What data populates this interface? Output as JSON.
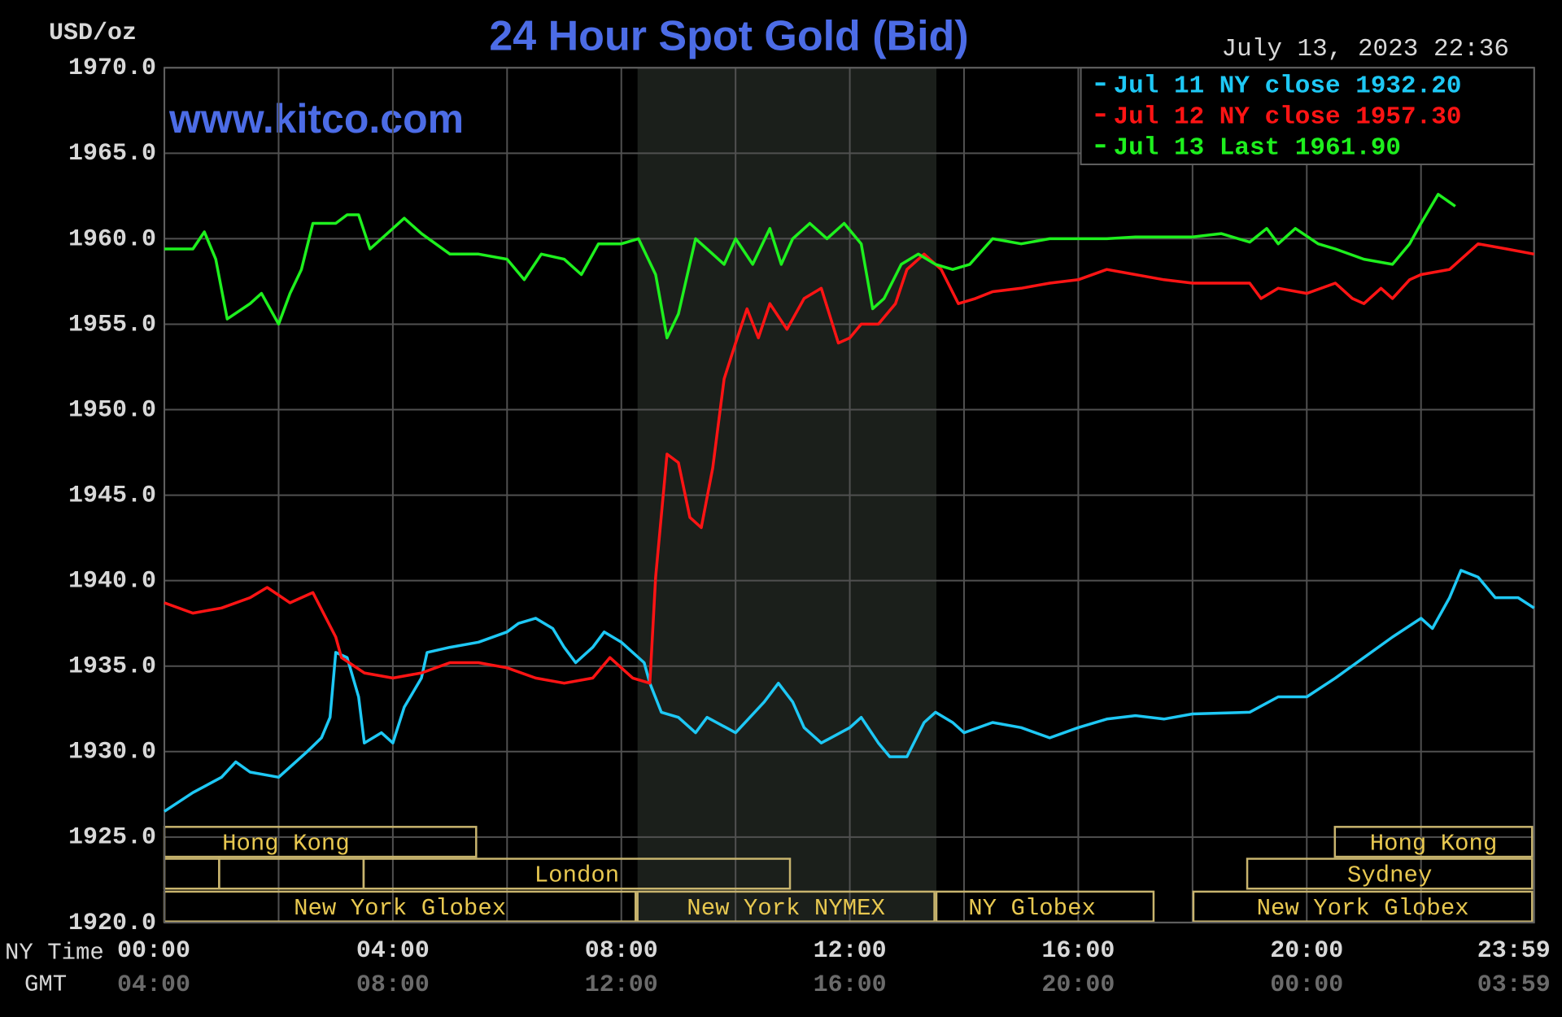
{
  "chart_data": {
    "type": "line",
    "title": "24 Hour Spot Gold (Bid)",
    "y_label": "USD/oz",
    "timestamp": "July 13, 2023 22:36",
    "watermark": "www.kitco.com",
    "x_label": "NY Time",
    "x2_label": "GMT",
    "xlim": [
      0,
      23.98
    ],
    "xticks": [
      {
        "value": 0,
        "label": "00:00"
      },
      {
        "value": 4,
        "label": "04:00"
      },
      {
        "value": 8,
        "label": "08:00"
      },
      {
        "value": 12,
        "label": "12:00"
      },
      {
        "value": 16,
        "label": "16:00"
      },
      {
        "value": 20,
        "label": "20:00"
      },
      {
        "value": 23.98,
        "label": "23:59"
      }
    ],
    "x2ticks": [
      {
        "value": 0,
        "label": "04:00"
      },
      {
        "value": 4,
        "label": "08:00"
      },
      {
        "value": 8,
        "label": "12:00"
      },
      {
        "value": 12,
        "label": "16:00"
      },
      {
        "value": 16,
        "label": "20:00"
      },
      {
        "value": 20,
        "label": "00:00"
      },
      {
        "value": 23.98,
        "label": "03:59"
      }
    ],
    "xminor": [
      2,
      6,
      10,
      14,
      18,
      22
    ],
    "ylim": [
      1920,
      1970
    ],
    "yticks": [
      {
        "value": 1920,
        "label": "1920.0"
      },
      {
        "value": 1925,
        "label": "1925.0"
      },
      {
        "value": 1930,
        "label": "1930.0"
      },
      {
        "value": 1935,
        "label": "1935.0"
      },
      {
        "value": 1940,
        "label": "1940.0"
      },
      {
        "value": 1945,
        "label": "1945.0"
      },
      {
        "value": 1950,
        "label": "1950.0"
      },
      {
        "value": 1955,
        "label": "1955.0"
      },
      {
        "value": 1960,
        "label": "1960.0"
      },
      {
        "value": 1965,
        "label": "1965.0"
      },
      {
        "value": 1970,
        "label": "1970.0"
      }
    ],
    "grid": true,
    "legend": "top-right",
    "sessions": [
      "Hong Kong",
      "Hong Kong",
      "London",
      "Sydney",
      "New York Globex",
      "New York NYMEX",
      "NY Globex",
      "New York Globex"
    ],
    "series": [
      {
        "name": "Jul 11 NY close 1932.20",
        "color": "#1ec8f5",
        "x": [
          0,
          0.5,
          1,
          1.25,
          1.5,
          2,
          2.5,
          2.75,
          2.9,
          3,
          3.2,
          3.4,
          3.5,
          3.8,
          4,
          4.2,
          4.5,
          4.6,
          5,
          5.5,
          6,
          6.2,
          6.5,
          6.8,
          7,
          7.2,
          7.5,
          7.7,
          8,
          8.4,
          8.5,
          8.7,
          9,
          9.3,
          9.5,
          10,
          10.5,
          10.75,
          11,
          11.2,
          11.5,
          12,
          12.2,
          12.5,
          12.7,
          13,
          13.3,
          13.5,
          13.8,
          14,
          14.5,
          15,
          15.5,
          16,
          16.5,
          17,
          17.5,
          18,
          19,
          19.5,
          20,
          20.5,
          21,
          21.5,
          22,
          22.2,
          22.5,
          22.7,
          23,
          23.3,
          23.7,
          23.98
        ],
        "values": [
          1926.5,
          1927.6,
          1928.5,
          1929.4,
          1928.8,
          1928.5,
          1930,
          1930.8,
          1932,
          1935.8,
          1935.5,
          1933.2,
          1930.5,
          1931.1,
          1930.5,
          1932.6,
          1934.3,
          1935.8,
          1936.1,
          1936.4,
          1937,
          1937.5,
          1937.8,
          1937.2,
          1936.1,
          1935.2,
          1936.1,
          1937,
          1936.4,
          1935.2,
          1934,
          1932.3,
          1932,
          1931.1,
          1932,
          1931.1,
          1932.9,
          1934,
          1932.9,
          1931.4,
          1930.5,
          1931.4,
          1932,
          1930.5,
          1929.7,
          1929.7,
          1931.7,
          1932.3,
          1931.7,
          1931.1,
          1931.7,
          1931.4,
          1930.8,
          1931.4,
          1931.9,
          1932.1,
          1931.9,
          1932.2,
          1932.3,
          1933.2,
          1933.2,
          1934.3,
          1935.5,
          1936.7,
          1937.8,
          1937.2,
          1939,
          1940.6,
          1940.2,
          1939,
          1939,
          1938.4
        ]
      },
      {
        "name": "Jul 12 NY close 1957.30",
        "color": "#ff1414",
        "x": [
          0,
          0.5,
          1,
          1.5,
          1.8,
          2.2,
          2.6,
          3,
          3.1,
          3.5,
          4,
          4.5,
          5,
          5.5,
          6,
          6.5,
          7,
          7.5,
          7.8,
          8.2,
          8.5,
          8.6,
          8.8,
          9,
          9.2,
          9.4,
          9.6,
          9.8,
          10,
          10.2,
          10.4,
          10.6,
          10.9,
          11.2,
          11.5,
          11.8,
          12,
          12.2,
          12.5,
          12.8,
          13,
          13.3,
          13.6,
          13.9,
          14.2,
          14.5,
          15,
          15.5,
          16,
          16.5,
          17,
          17.5,
          18,
          19,
          19.2,
          19.5,
          20,
          20.5,
          20.8,
          21,
          21.3,
          21.5,
          21.8,
          22,
          22.5,
          22.8,
          23,
          23.5,
          23.98
        ],
        "values": [
          1938.7,
          1938.1,
          1938.4,
          1939,
          1939.6,
          1938.7,
          1939.3,
          1936.7,
          1935.5,
          1934.6,
          1934.3,
          1934.6,
          1935.2,
          1935.2,
          1934.9,
          1934.3,
          1934,
          1934.3,
          1935.5,
          1934.3,
          1934,
          1940.2,
          1947.4,
          1946.9,
          1943.7,
          1943.1,
          1946.6,
          1951.8,
          1953.9,
          1955.9,
          1954.2,
          1956.2,
          1954.7,
          1956.5,
          1957.1,
          1953.9,
          1954.2,
          1955,
          1955,
          1956.2,
          1958.2,
          1959.1,
          1958.2,
          1956.2,
          1956.5,
          1956.9,
          1957.1,
          1957.4,
          1957.6,
          1958.2,
          1957.9,
          1957.6,
          1957.4,
          1957.4,
          1956.5,
          1957.1,
          1956.8,
          1957.4,
          1956.5,
          1956.2,
          1957.1,
          1956.5,
          1957.6,
          1957.9,
          1958.2,
          1959.1,
          1959.7,
          1959.4,
          1959.1
        ]
      },
      {
        "name": "Jul 13 Last 1961.90",
        "color": "#1ef01e",
        "x": [
          0,
          0.5,
          0.7,
          0.9,
          1.1,
          1.5,
          1.7,
          2,
          2.2,
          2.4,
          2.6,
          3,
          3.2,
          3.4,
          3.6,
          4,
          4.2,
          4.5,
          5,
          5.5,
          6,
          6.3,
          6.6,
          7,
          7.3,
          7.6,
          8,
          8.3,
          8.6,
          8.8,
          9,
          9.3,
          9.6,
          9.8,
          10,
          10.3,
          10.6,
          10.8,
          11,
          11.3,
          11.6,
          11.9,
          12.2,
          12.4,
          12.6,
          12.9,
          13.2,
          13.5,
          13.8,
          14.1,
          14.5,
          15,
          15.5,
          16,
          16.5,
          17,
          18,
          18.5,
          19,
          19.3,
          19.5,
          19.8,
          20.2,
          20.5,
          21,
          21.5,
          21.8,
          22,
          22.3,
          22.6
        ],
        "values": [
          1959.4,
          1959.4,
          1960.4,
          1958.8,
          1955.3,
          1956.2,
          1956.8,
          1955,
          1956.8,
          1958.2,
          1960.9,
          1960.9,
          1961.4,
          1961.4,
          1959.4,
          1960.6,
          1961.2,
          1960.3,
          1959.1,
          1959.1,
          1958.8,
          1957.6,
          1959.1,
          1958.8,
          1957.9,
          1959.7,
          1959.7,
          1960,
          1957.9,
          1954.2,
          1955.6,
          1960,
          1959.1,
          1958.5,
          1960,
          1958.5,
          1960.6,
          1958.5,
          1960,
          1960.9,
          1960,
          1960.9,
          1959.7,
          1955.9,
          1956.5,
          1958.5,
          1959.1,
          1958.5,
          1958.2,
          1958.5,
          1960,
          1959.7,
          1960,
          1960,
          1960,
          1960.1,
          1960.1,
          1960.3,
          1959.8,
          1960.6,
          1959.7,
          1960.6,
          1959.7,
          1959.4,
          1958.8,
          1958.5,
          1959.7,
          1960.9,
          1962.6,
          1961.9
        ]
      }
    ]
  }
}
